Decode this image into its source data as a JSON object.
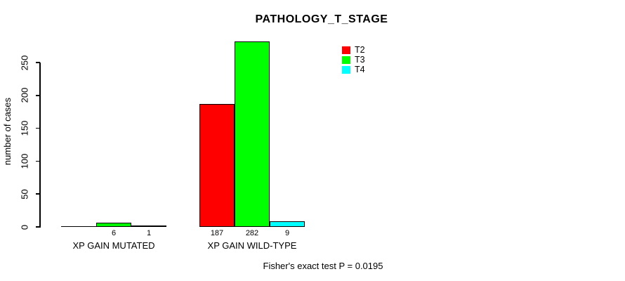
{
  "chart_data": {
    "type": "bar",
    "title": "PATHOLOGY_T_STAGE",
    "ylabel": "number of cases",
    "xlabel": "",
    "categories": [
      "XP GAIN MUTATED",
      "XP GAIN WILD-TYPE"
    ],
    "series": [
      {
        "name": "T2",
        "color": "#ff0000",
        "values": [
          0,
          187
        ]
      },
      {
        "name": "T3",
        "color": "#00ff00",
        "values": [
          6,
          282
        ]
      },
      {
        "name": "T4",
        "color": "#00ffff",
        "values": [
          1,
          9
        ]
      }
    ],
    "yticks": [
      0,
      50,
      100,
      150,
      200,
      250
    ],
    "ylim": [
      0,
      295
    ],
    "grid": false,
    "legend": {
      "position": "topright"
    },
    "bar_value_labels": "value shown under each bar when value > 0",
    "annotation": "Fisher's exact test P = 0.0195"
  }
}
